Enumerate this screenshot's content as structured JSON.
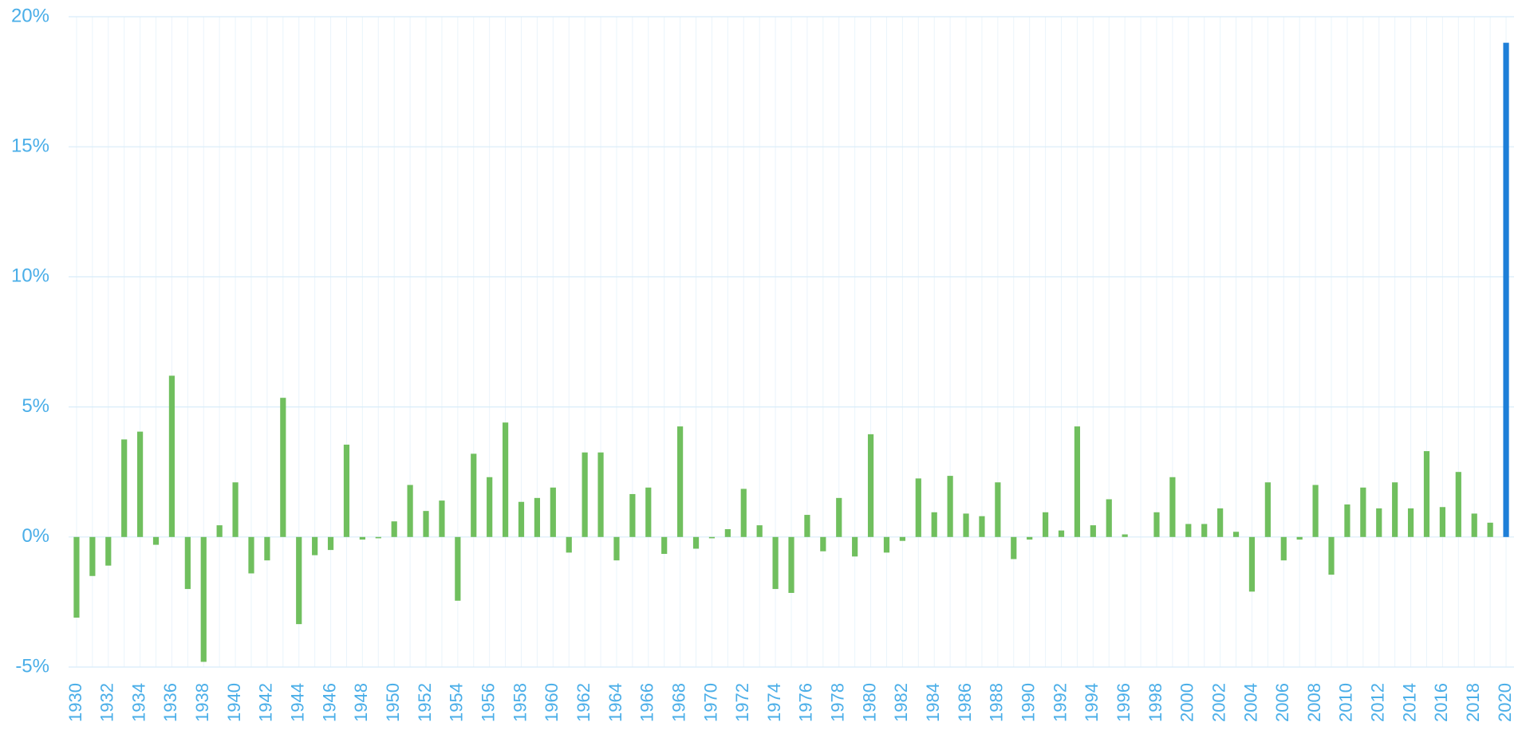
{
  "chart_data": {
    "type": "bar",
    "categories": [
      "1930",
      null,
      "1932",
      null,
      "1934",
      null,
      "1936",
      null,
      "1938",
      null,
      "1940",
      null,
      "1942",
      null,
      "1944",
      null,
      "1946",
      null,
      "1948",
      null,
      "1950",
      null,
      "1952",
      null,
      "1954",
      null,
      "1956",
      null,
      "1958",
      null,
      "1960",
      null,
      "1962",
      null,
      "1964",
      null,
      "1966",
      null,
      "1968",
      null,
      "1970",
      null,
      "1972",
      null,
      "1974",
      null,
      "1976",
      null,
      "1978",
      null,
      "1980",
      null,
      "1982",
      null,
      "1984",
      null,
      "1986",
      null,
      "1988",
      null,
      "1990",
      null,
      "1992",
      null,
      "1994",
      null,
      "1996",
      null,
      "1998",
      null,
      "2000",
      null,
      "2002",
      null,
      "2004",
      null,
      "2006",
      null,
      "2008",
      null,
      "2010",
      null,
      "2012",
      null,
      "2014",
      null,
      "2016",
      null,
      "2018",
      null,
      "2020"
    ],
    "values": [
      -3.1,
      -1.5,
      -1.1,
      3.75,
      4.05,
      -0.3,
      6.2,
      -2.0,
      -4.8,
      0.45,
      2.1,
      -1.4,
      -0.9,
      5.35,
      -3.35,
      -0.7,
      -0.5,
      3.55,
      -0.1,
      -0.05,
      0.6,
      2.0,
      1.0,
      1.4,
      -2.45,
      3.2,
      2.3,
      4.4,
      1.35,
      1.5,
      1.9,
      -0.6,
      3.25,
      3.25,
      -0.9,
      1.65,
      1.9,
      -0.65,
      4.25,
      -0.45,
      -0.05,
      0.3,
      1.85,
      0.45,
      -2.0,
      -2.15,
      0.85,
      -0.55,
      1.5,
      -0.75,
      3.95,
      -0.6,
      -0.15,
      2.25,
      0.95,
      2.35,
      0.9,
      0.8,
      2.1,
      -0.85,
      -0.1,
      0.95,
      0.25,
      4.25,
      0.45,
      1.45,
      0.1,
      0,
      0.95,
      2.3,
      0.5,
      0.5,
      1.1,
      0.2,
      -2.1,
      2.1,
      -0.9,
      -0.1,
      2.0,
      -1.45,
      1.25,
      1.9,
      1.1,
      2.1,
      1.1,
      3.3,
      1.15,
      2.5,
      0.9,
      0.55,
      19.0
    ],
    "colors": [
      "#70bf5e",
      "#70bf5e",
      "#70bf5e",
      "#70bf5e",
      "#70bf5e",
      "#70bf5e",
      "#70bf5e",
      "#70bf5e",
      "#70bf5e",
      "#70bf5e",
      "#70bf5e",
      "#70bf5e",
      "#70bf5e",
      "#70bf5e",
      "#70bf5e",
      "#70bf5e",
      "#70bf5e",
      "#70bf5e",
      "#70bf5e",
      "#70bf5e",
      "#70bf5e",
      "#70bf5e",
      "#70bf5e",
      "#70bf5e",
      "#70bf5e",
      "#70bf5e",
      "#70bf5e",
      "#70bf5e",
      "#70bf5e",
      "#70bf5e",
      "#70bf5e",
      "#70bf5e",
      "#70bf5e",
      "#70bf5e",
      "#70bf5e",
      "#70bf5e",
      "#70bf5e",
      "#70bf5e",
      "#70bf5e",
      "#70bf5e",
      "#70bf5e",
      "#70bf5e",
      "#70bf5e",
      "#70bf5e",
      "#70bf5e",
      "#70bf5e",
      "#70bf5e",
      "#70bf5e",
      "#70bf5e",
      "#70bf5e",
      "#70bf5e",
      "#70bf5e",
      "#70bf5e",
      "#70bf5e",
      "#70bf5e",
      "#70bf5e",
      "#70bf5e",
      "#70bf5e",
      "#70bf5e",
      "#70bf5e",
      "#70bf5e",
      "#70bf5e",
      "#70bf5e",
      "#70bf5e",
      "#70bf5e",
      "#70bf5e",
      "#70bf5e",
      "#70bf5e",
      "#70bf5e",
      "#70bf5e",
      "#70bf5e",
      "#70bf5e",
      "#70bf5e",
      "#70bf5e",
      "#70bf5e",
      "#70bf5e",
      "#70bf5e",
      "#70bf5e",
      "#70bf5e",
      "#70bf5e",
      "#70bf5e",
      "#70bf5e",
      "#70bf5e",
      "#70bf5e",
      "#70bf5e",
      "#70bf5e",
      "#70bf5e",
      "#70bf5e",
      "#70bf5e",
      "#70bf5e",
      "#1e7fd8"
    ],
    "ylim": [
      -5,
      20
    ],
    "yticks": [
      {
        "value": -5,
        "label": "-5%"
      },
      {
        "value": 0,
        "label": "0%"
      },
      {
        "value": 5,
        "label": "5%"
      },
      {
        "value": 10,
        "label": "10%"
      },
      {
        "value": 15,
        "label": "15%"
      },
      {
        "value": 20,
        "label": "20%"
      }
    ],
    "grid": true
  }
}
